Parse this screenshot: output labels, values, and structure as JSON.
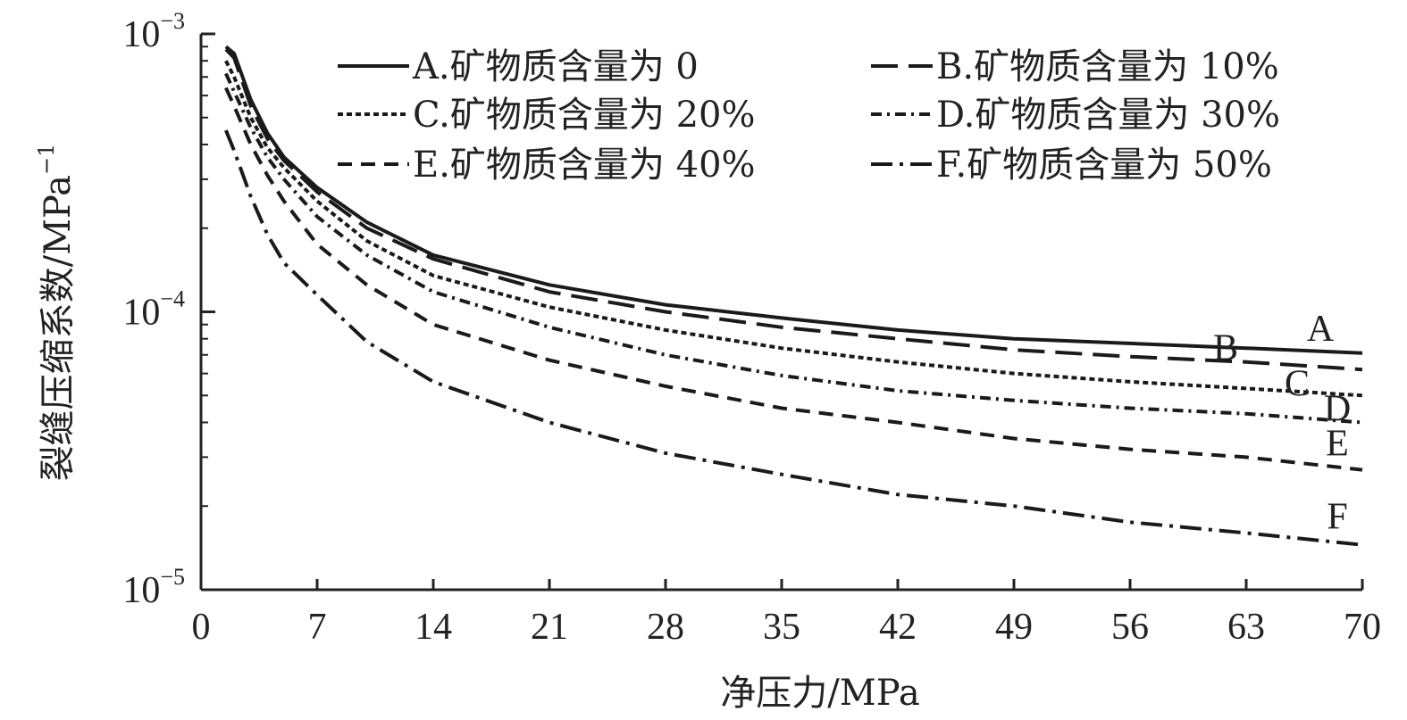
{
  "chart_data": {
    "type": "line",
    "title": "",
    "xlabel": "净压力/MPa",
    "ylabel": "裂缝压缩系数/MPa",
    "ylabel_sup": "−1",
    "xscale": "linear",
    "yscale": "log",
    "xlim": [
      0,
      70
    ],
    "ylim": [
      1e-05,
      0.001
    ],
    "xticks": [
      0,
      7,
      14,
      21,
      28,
      35,
      42,
      49,
      56,
      63,
      70
    ],
    "yticks": [
      {
        "value": 0.001,
        "base": "10",
        "exp": "−3"
      },
      {
        "value": 0.0001,
        "base": "10",
        "exp": "−4"
      },
      {
        "value": 1e-05,
        "base": "10",
        "exp": "−5"
      }
    ],
    "grid": false,
    "legend_position": "top",
    "x": [
      1.5,
      2,
      3,
      4,
      5,
      7,
      10,
      14,
      21,
      28,
      35,
      42,
      49,
      56,
      63,
      70
    ],
    "series": [
      {
        "key": "A",
        "name": "A.矿物质含量为 0",
        "dash": "",
        "values": [
          0.0009,
          0.00085,
          0.00058,
          0.00044,
          0.00036,
          0.00028,
          0.00021,
          0.00016,
          0.000125,
          0.000106,
          9.5e-05,
          8.6e-05,
          8e-05,
          7.7e-05,
          7.4e-05,
          7.1e-05
        ]
      },
      {
        "key": "B",
        "name": "B.矿物质含量为 10%",
        "dash": "30,12",
        "values": [
          0.00088,
          0.00082,
          0.00055,
          0.00042,
          0.00035,
          0.00027,
          0.0002,
          0.000155,
          0.000118,
          0.0001,
          8.8e-05,
          8e-05,
          7.3e-05,
          6.9e-05,
          6.6e-05,
          6.2e-05
        ]
      },
      {
        "key": "C",
        "name": "C.矿物质含量为 20%",
        "dash": "6,4",
        "values": [
          0.0008,
          0.0007,
          0.0005,
          0.00039,
          0.00033,
          0.00025,
          0.00018,
          0.000135,
          0.000104,
          8.6e-05,
          7.4e-05,
          6.6e-05,
          6e-05,
          5.6e-05,
          5.3e-05,
          5e-05
        ]
      },
      {
        "key": "D",
        "name": "D.矿物质含量为 30%",
        "dash": "12,6,3,6",
        "values": [
          0.00072,
          0.00062,
          0.00046,
          0.00036,
          0.0003,
          0.00022,
          0.00016,
          0.000118,
          8.8e-05,
          7e-05,
          5.9e-05,
          5.2e-05,
          4.8e-05,
          4.5e-05,
          4.3e-05,
          4e-05
        ]
      },
      {
        "key": "E",
        "name": "E.矿物质含量为 40%",
        "dash": "16,10",
        "values": [
          0.00064,
          0.00055,
          0.0004,
          0.00031,
          0.00025,
          0.000175,
          0.000125,
          9e-05,
          6.7e-05,
          5.4e-05,
          4.5e-05,
          4e-05,
          3.5e-05,
          3.2e-05,
          3e-05,
          2.7e-05
        ]
      },
      {
        "key": "F",
        "name": "F.矿物质含量为 50%",
        "dash": "24,8,4,8",
        "values": [
          0.00045,
          0.00038,
          0.00026,
          0.00019,
          0.00015,
          0.000115,
          7.8e-05,
          5.6e-05,
          4e-05,
          3.1e-05,
          2.6e-05,
          2.2e-05,
          2e-05,
          1.75e-05,
          1.6e-05,
          1.45e-05
        ]
      }
    ],
    "end_labels": [
      "A",
      "B",
      "C",
      "D",
      "E",
      "F"
    ]
  }
}
